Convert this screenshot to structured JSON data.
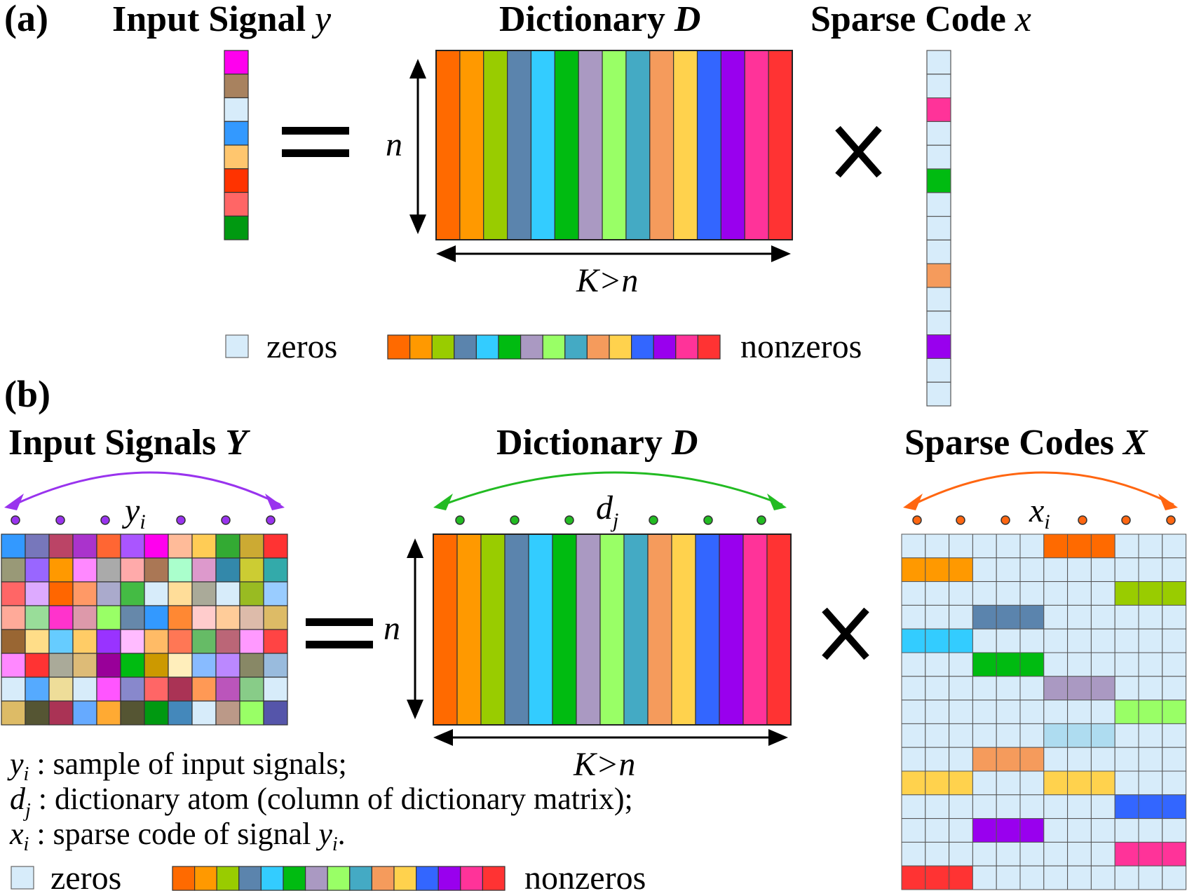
{
  "palette": [
    "#ff6a00",
    "#ff9900",
    "#99cc00",
    "#5b84ad",
    "#33ccff",
    "#00bb11",
    "#aa99c2",
    "#99ff66",
    "#44aac4",
    "#f59b5c",
    "#ffd24d",
    "#3366ff",
    "#9900ee",
    "#ff3399",
    "#ff3333"
  ],
  "zero_color": "#d7ecfa",
  "panel_a": {
    "label": "(a)",
    "input_title": "Input Signal ",
    "input_var": "y",
    "dict_title": "Dictionary ",
    "dict_var": "D",
    "code_title": "Sparse Code ",
    "code_var": "x",
    "equals": "=",
    "times": "×",
    "n_label": "n",
    "k_label": "K>n",
    "legend_zeros": "zeros",
    "legend_nonzeros": "nonzeros",
    "input_vector": [
      "#ff00ee",
      "#a8825f",
      "#d7ecfa",
      "#3399ff",
      "#ffc66e",
      "#ff3300",
      "#ff6666",
      "#009911"
    ],
    "sparse_vector": [
      "#d7ecfa",
      "#d7ecfa",
      "#ff3399",
      "#d7ecfa",
      "#d7ecfa",
      "#00bb11",
      "#d7ecfa",
      "#d7ecfa",
      "#d7ecfa",
      "#f59b5c",
      "#d7ecfa",
      "#d7ecfa",
      "#9900ee",
      "#d7ecfa",
      "#d7ecfa"
    ]
  },
  "panel_b": {
    "label": "(b)",
    "input_title": "Input Signals ",
    "input_var": "Y",
    "dict_title": "Dictionary ",
    "dict_var": "D",
    "code_title": "Sparse Codes ",
    "code_var": "X",
    "equals": "=",
    "times": "×",
    "n_label": "n",
    "k_label": "K>n",
    "y_label": "y",
    "y_sub": "i",
    "d_label": "d",
    "d_sub": "j",
    "x_label": "x",
    "x_sub": "i",
    "arc_colors": {
      "input": "#9933ee",
      "dict": "#22bb22",
      "code": "#ff6611"
    },
    "legend_zeros": "zeros",
    "legend_nonzeros": "nonzeros",
    "definitions": [
      {
        "sym": "y",
        "sub": "i",
        "text": " : sample of input signals;"
      },
      {
        "sym": "d",
        "sub": "j",
        "text": " : dictionary atom (column of dictionary matrix);"
      },
      {
        "sym": "x",
        "sub": "i",
        "text": " : sparse code of signal ",
        "tail_sym": "y",
        "tail_sub": "i",
        "tail": "."
      }
    ],
    "input_matrix": [
      [
        "#3399ff",
        "#7777bb",
        "#bb4466",
        "#aa33cc",
        "#ff6633",
        "#aa55ff",
        "#ff00ee",
        "#ffbb99",
        "#ffcc55",
        "#33aa33",
        "#ccaa33",
        "#ff3333"
      ],
      [
        "#999977",
        "#9966ff",
        "#ff9900",
        "#ff88ff",
        "#aaaaaa",
        "#ffaaaa",
        "#aa7755",
        "#aaffcc",
        "#dd99cc",
        "#3388aa",
        "#cccc33",
        "#33aaaa"
      ],
      [
        "#ff6666",
        "#ddaaff",
        "#ff6600",
        "#ff9966",
        "#aaaacc",
        "#44bb44",
        "#d7ecfa",
        "#ffdd99",
        "#aaaa99",
        "#d7ecfa",
        "#99bb22",
        "#99ccff"
      ],
      [
        "#ffaa99",
        "#99dd99",
        "#ff33cc",
        "#dd99aa",
        "#99ff66",
        "#6688aa",
        "#3399ff",
        "#ff8833",
        "#ffcccc",
        "#ffcc99",
        "#ddbbaa",
        "#ddbb66"
      ],
      [
        "#996633",
        "#ffdd88",
        "#66ccff",
        "#ffcc66",
        "#9933ff",
        "#ffbbff",
        "#ffbb66",
        "#ff7755",
        "#66bb66",
        "#bb6677",
        "#ff99ff",
        "#ff4444"
      ],
      [
        "#ff88ff",
        "#ff3333",
        "#aaaa99",
        "#ddbb77",
        "#990099",
        "#00bb11",
        "#cc9900",
        "#ffeebb",
        "#88bbff",
        "#bb88ff",
        "#888866",
        "#99bbdd"
      ],
      [
        "#d7ecfa",
        "#55aaff",
        "#eedd99",
        "#d7ecfa",
        "#ff55ff",
        "#8888cc",
        "#ff6666",
        "#aa3355",
        "#ff9955",
        "#bb55bb",
        "#88cc88",
        "#d7ecfa"
      ],
      [
        "#ddbb66",
        "#555533",
        "#aa3355",
        "#66aaff",
        "#ffaa33",
        "#555533",
        "#009911",
        "#4488bb",
        "#d7ecfa",
        "#bb9988",
        "#99ff66",
        "#5555aa"
      ]
    ],
    "sparse_blocks": [
      {
        "row": 0,
        "col": 6,
        "color": "#ff6a00"
      },
      {
        "row": 1,
        "col": 0,
        "color": "#ff9900"
      },
      {
        "row": 2,
        "col": 9,
        "color": "#99cc00"
      },
      {
        "row": 3,
        "col": 3,
        "color": "#5b84ad"
      },
      {
        "row": 4,
        "col": 0,
        "color": "#33ccff"
      },
      {
        "row": 5,
        "col": 3,
        "color": "#00bb11"
      },
      {
        "row": 6,
        "col": 6,
        "color": "#aa99c2"
      },
      {
        "row": 7,
        "col": 9,
        "color": "#99ff66"
      },
      {
        "row": 8,
        "col": 6,
        "color": "#aedcf0"
      },
      {
        "row": 9,
        "col": 3,
        "color": "#f59b5c"
      },
      {
        "row": 10,
        "col": 0,
        "color": "#ffd24d"
      },
      {
        "row": 10,
        "col": 6,
        "color": "#ffd24d"
      },
      {
        "row": 11,
        "col": 9,
        "color": "#3366ff"
      },
      {
        "row": 12,
        "col": 3,
        "color": "#9900ee"
      },
      {
        "row": 13,
        "col": 9,
        "color": "#ff3399"
      },
      {
        "row": 14,
        "col": 0,
        "color": "#ff3333"
      }
    ]
  }
}
